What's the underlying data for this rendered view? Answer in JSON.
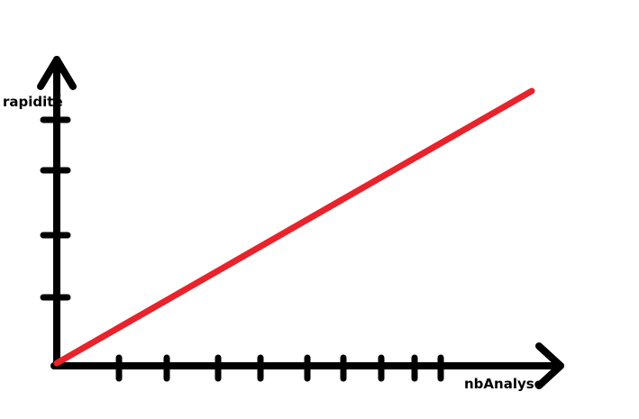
{
  "chart_data": {
    "type": "line",
    "xlabel": "nbAnalyse",
    "ylabel": "rapidité",
    "x_tick_count": 9,
    "y_tick_count": 4,
    "series": [
      {
        "color": "#e8232b",
        "x": [
          0,
          1
        ],
        "y": [
          0,
          1
        ]
      }
    ],
    "grid": false,
    "axis_color": "#000000"
  }
}
